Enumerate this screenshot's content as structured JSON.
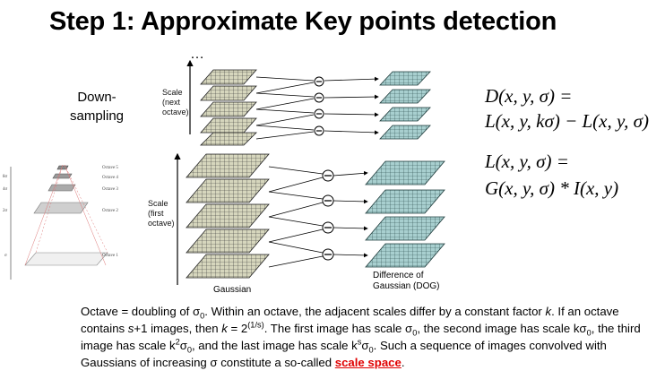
{
  "title": "Step 1: Approximate Key points detection",
  "ellipsis": "…",
  "down_sampling": [
    "Down-",
    "sampling"
  ],
  "scale_next_octave": [
    "Scale",
    "(next",
    "octave)"
  ],
  "scale_first_octave": [
    "Scale",
    "(first",
    "octave)"
  ],
  "gaussian_label": "Gaussian",
  "dog_label": [
    "Difference of",
    "Gaussian (DOG)"
  ],
  "pyramid_labels": [
    "Octave 5",
    "Octave 4",
    "Octave 3",
    "Octave 2",
    "Octave 1"
  ],
  "pyramid_axis": [
    "8σ",
    "4σ",
    "2σ",
    "σ"
  ],
  "equations": {
    "d_line1": "D(x, y, σ) =",
    "d_line2": "L(x, y, kσ) − L(x, y, σ)",
    "l_line1": "L(x, y, σ) =",
    "l_line2": "G(x, y, σ) * I(x, y)"
  },
  "caption": {
    "p1": "Octave = doubling of σ",
    "p1_sub": "0",
    "p2": ". Within an octave, the adjacent scales differ by a constant factor ",
    "k1": "k",
    "p3": ". If an octave contains ",
    "s1": "s",
    "p4": "+1 images, then ",
    "k2": "k",
    "p5": " = 2",
    "exp": "(1/s)",
    "p6": ". The first image has scale σ",
    "sub0a": "0",
    "p7": ", the second image has scale kσ",
    "sub0b": "0",
    "p8": ", the third image has scale k",
    "sup2": "2",
    "p9": "σ",
    "sub0c": "0",
    "p10": ", and the last image has scale k",
    "sups": "s",
    "p11": "σ",
    "sub0d": "0",
    "p12": ". Such a sequence of images convolved with Gaussians of increasing σ constitute a so-called ",
    "link": "scale space",
    "p13": "."
  },
  "colors": {
    "link": "#e00000",
    "gaussian_fill": "#c8c8a8",
    "dog_fill": "#9fc8c8"
  }
}
